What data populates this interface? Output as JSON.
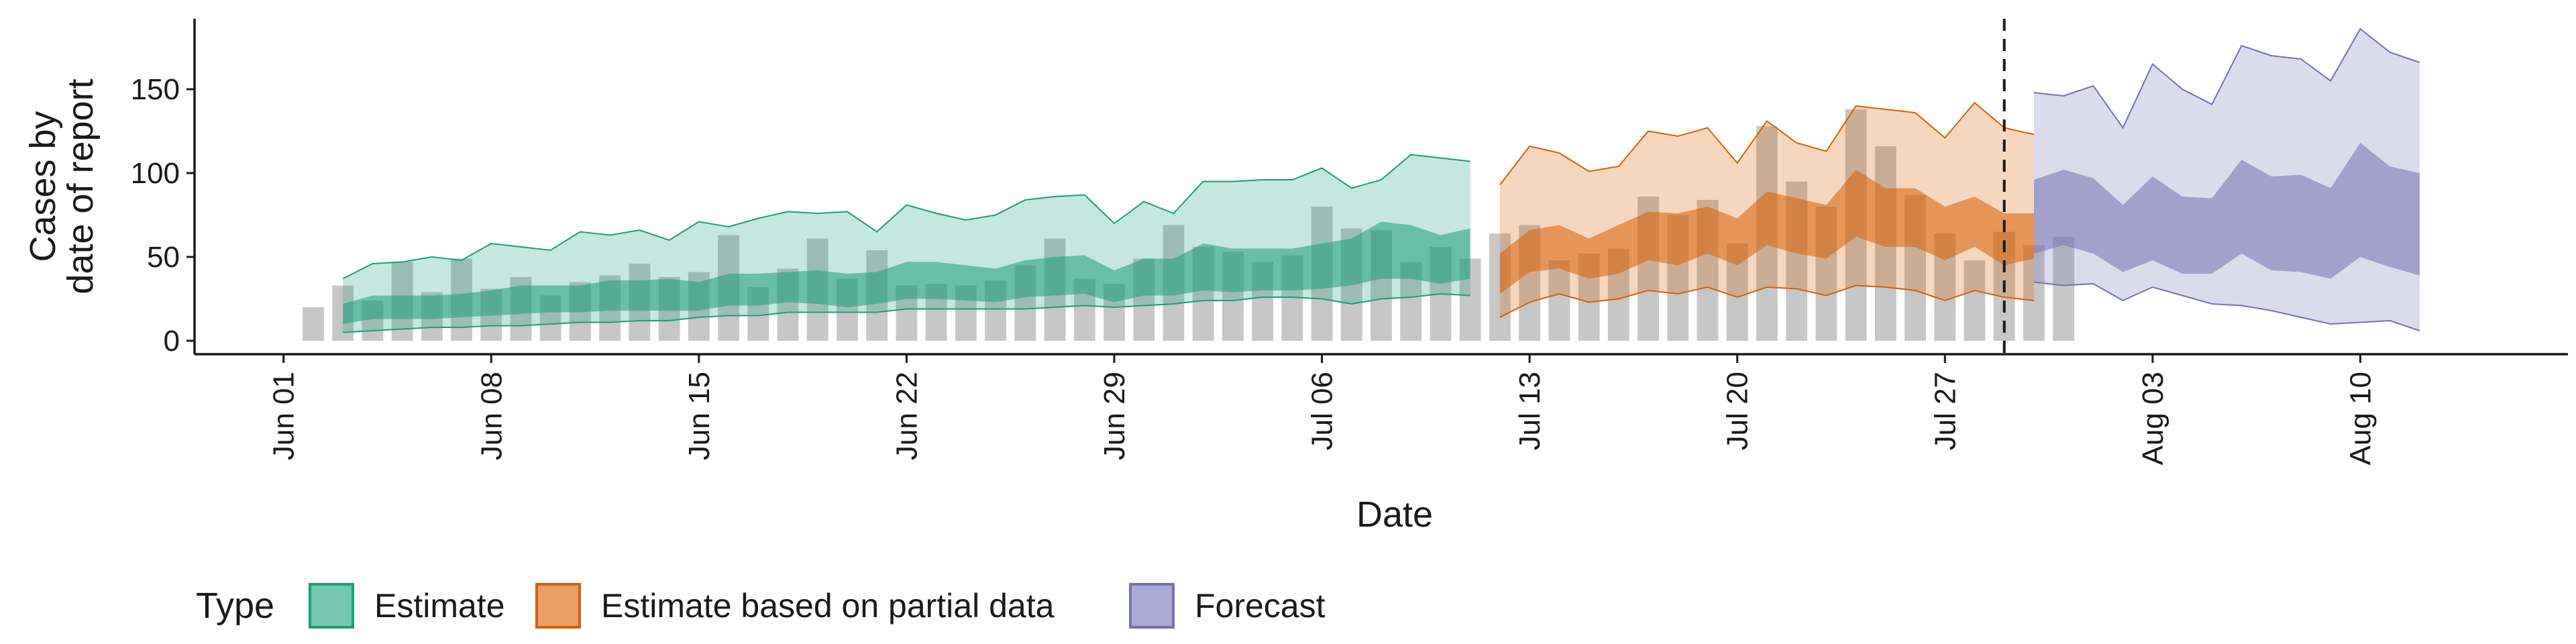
{
  "chart_data": {
    "type": "area",
    "xlabel": "Date",
    "ylabel_lines": [
      "Cases by",
      "date of report"
    ],
    "ylim": [
      -8,
      192
    ],
    "y_ticks": [
      0,
      50,
      100,
      150
    ],
    "x_start_date": "2020-05-29",
    "x_end_date": "2020-08-17",
    "x_ticks": [
      {
        "date": "2020-06-01",
        "label": "Jun 01"
      },
      {
        "date": "2020-06-08",
        "label": "Jun 08"
      },
      {
        "date": "2020-06-15",
        "label": "Jun 15"
      },
      {
        "date": "2020-06-22",
        "label": "Jun 22"
      },
      {
        "date": "2020-06-29",
        "label": "Jun 29"
      },
      {
        "date": "2020-07-06",
        "label": "Jul 06"
      },
      {
        "date": "2020-07-13",
        "label": "Jul 13"
      },
      {
        "date": "2020-07-20",
        "label": "Jul 20"
      },
      {
        "date": "2020-07-27",
        "label": "Jul 27"
      },
      {
        "date": "2020-08-03",
        "label": "Aug 03"
      },
      {
        "date": "2020-08-10",
        "label": "Aug 10"
      }
    ],
    "vline_date": "2020-07-29",
    "bars": {
      "start_date": "2020-06-02",
      "color": "#bdbdbd",
      "values": [
        20,
        33,
        24,
        47,
        29,
        49,
        31,
        38,
        27,
        35,
        39,
        46,
        38,
        41,
        63,
        32,
        43,
        61,
        37,
        54,
        33,
        34,
        33,
        36,
        45,
        61,
        37,
        34,
        49,
        69,
        56,
        53,
        47,
        51,
        80,
        67,
        66,
        47,
        56,
        49,
        64,
        69,
        48,
        52,
        55,
        86,
        75,
        84,
        58,
        128,
        95,
        80,
        138,
        116,
        87,
        64,
        48,
        65,
        57,
        62
      ]
    },
    "series": [
      {
        "name": "Estimate",
        "color": "#1b9e77",
        "start_date": "2020-06-03",
        "outer_upper": [
          37,
          46,
          47,
          50,
          48,
          58,
          56,
          54,
          65,
          63,
          66,
          60,
          71,
          68,
          73,
          77,
          76,
          77,
          65,
          81,
          76,
          72,
          75,
          84,
          86,
          87,
          70,
          83,
          76,
          95,
          95,
          96,
          96,
          103,
          91,
          96,
          111,
          109,
          107
        ],
        "inner_upper": [
          22,
          27,
          27,
          27,
          28,
          30,
          33,
          33,
          33,
          36,
          36,
          37,
          35,
          40,
          40,
          41,
          42,
          40,
          41,
          47,
          47,
          45,
          43,
          48,
          50,
          51,
          42,
          49,
          49,
          58,
          55,
          55,
          55,
          58,
          61,
          71,
          69,
          63,
          67
        ],
        "inner_lower": [
          10,
          13,
          13,
          13,
          14,
          15,
          16,
          17,
          17,
          18,
          18,
          18,
          18,
          21,
          21,
          23,
          22,
          20,
          22,
          25,
          25,
          24,
          23,
          26,
          27,
          28,
          23,
          27,
          27,
          30,
          29,
          30,
          30,
          31,
          33,
          37,
          37,
          34,
          37
        ],
        "outer_lower": [
          5,
          6,
          7,
          8,
          8,
          9,
          9,
          10,
          11,
          11,
          12,
          12,
          14,
          15,
          15,
          17,
          17,
          17,
          17,
          19,
          19,
          19,
          19,
          19,
          20,
          21,
          20,
          21,
          22,
          24,
          24,
          26,
          26,
          25,
          22,
          25,
          26,
          28,
          27
        ]
      },
      {
        "name": "Estimate based on partial data",
        "color": "#d95f02",
        "start_date": "2020-07-12",
        "outer_upper": [
          93,
          116,
          112,
          101,
          104,
          125,
          122,
          127,
          106,
          131,
          118,
          113,
          140,
          138,
          136,
          121,
          142,
          127,
          123
        ],
        "inner_upper": [
          52,
          66,
          69,
          61,
          69,
          77,
          76,
          80,
          73,
          89,
          85,
          81,
          102,
          91,
          91,
          80,
          86,
          76,
          76
        ],
        "inner_lower": [
          28,
          41,
          43,
          37,
          40,
          48,
          45,
          52,
          45,
          57,
          52,
          49,
          62,
          56,
          56,
          48,
          56,
          45,
          49
        ],
        "outer_lower": [
          14,
          23,
          28,
          23,
          25,
          30,
          28,
          32,
          26,
          32,
          31,
          27,
          33,
          32,
          30,
          24,
          30,
          26,
          24
        ]
      },
      {
        "name": "Forecast",
        "color": "#7570b3",
        "start_date": "2020-07-30",
        "outer_upper": [
          148,
          146,
          152,
          127,
          165,
          150,
          141,
          176,
          170,
          168,
          155,
          186,
          172,
          166
        ],
        "inner_upper": [
          96,
          102,
          97,
          81,
          98,
          86,
          85,
          108,
          98,
          99,
          91,
          118,
          104,
          100
        ],
        "inner_lower": [
          52,
          57,
          52,
          41,
          48,
          40,
          40,
          52,
          42,
          41,
          37,
          50,
          44,
          39
        ],
        "outer_lower": [
          35,
          33,
          34,
          24,
          32,
          27,
          22,
          21,
          18,
          14,
          10,
          11,
          12,
          6
        ]
      }
    ],
    "legend": {
      "title": "Type",
      "position": "bottom",
      "items": [
        "Estimate",
        "Estimate based on partial data",
        "Forecast"
      ]
    },
    "grid": false
  }
}
